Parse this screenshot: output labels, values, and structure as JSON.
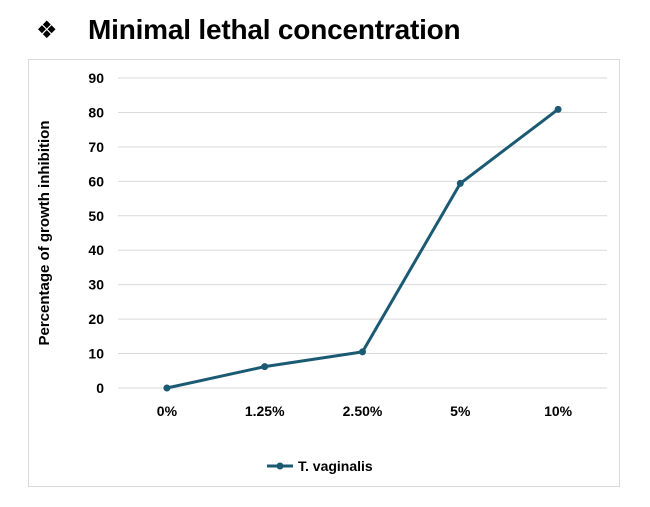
{
  "slide": {
    "bullet": "❖",
    "title": "Minimal lethal concentration"
  },
  "chart_data": {
    "type": "line",
    "title": "",
    "xlabel": "",
    "ylabel": "Percentage of growth inhibition",
    "categories": [
      "0%",
      "1.25%",
      "2.50%",
      "5%",
      "10%"
    ],
    "series": [
      {
        "name": "T. vaginalis",
        "values": [
          0,
          6.2,
          10.5,
          59.4,
          80.9
        ],
        "color": "#1b5a73"
      }
    ],
    "ylim": [
      0,
      90
    ],
    "yticks": [
      0,
      10,
      20,
      30,
      40,
      50,
      60,
      70,
      80,
      90
    ],
    "grid": true,
    "legend": "bottom",
    "gridColor": "#d9d9d9"
  }
}
